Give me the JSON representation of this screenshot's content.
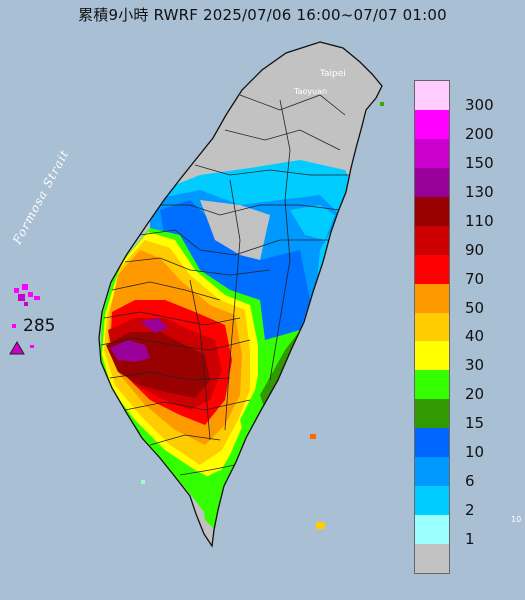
{
  "title": "累積9小時 RWRF 2025/07/06 16:00~07/07 01:00",
  "strait_label": "Formosa Strait",
  "max_value": "285",
  "map_labels": [
    "Taipei",
    "Taoyuan"
  ],
  "edge_tick": "10",
  "legend": {
    "items": [
      {
        "label": "300",
        "color": "#ffccff"
      },
      {
        "label": "200",
        "color": "#ff00ff"
      },
      {
        "label": "150",
        "color": "#cc00cc"
      },
      {
        "label": "130",
        "color": "#990099"
      },
      {
        "label": "110",
        "color": "#990000"
      },
      {
        "label": "90",
        "color": "#cc0000"
      },
      {
        "label": "70",
        "color": "#ff0000"
      },
      {
        "label": "50",
        "color": "#ff9900"
      },
      {
        "label": "40",
        "color": "#ffcc00"
      },
      {
        "label": "30",
        "color": "#ffff00"
      },
      {
        "label": "20",
        "color": "#33ff00"
      },
      {
        "label": "15",
        "color": "#339900"
      },
      {
        "label": "10",
        "color": "#0066ff"
      },
      {
        "label": "6",
        "color": "#0099ff"
      },
      {
        "label": "2",
        "color": "#00ccff"
      },
      {
        "label": "1",
        "color": "#99ffff"
      },
      {
        "label": "",
        "color": "#c2c2c2"
      }
    ]
  },
  "colors": {
    "sea": "#a9bfd3",
    "land_no_rain": "#c2c2c2"
  }
}
